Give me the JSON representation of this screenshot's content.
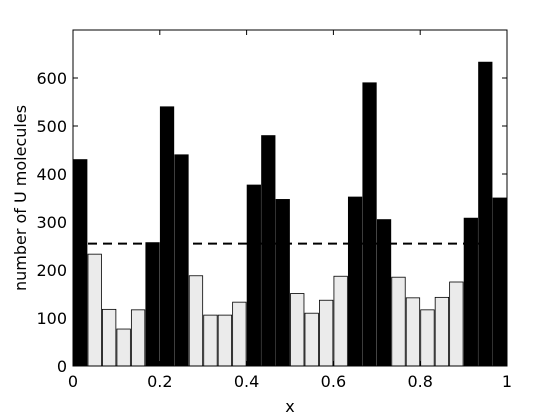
{
  "chart_data": {
    "type": "bar",
    "xlabel": "x",
    "ylabel": "number of U molecules",
    "xlim": [
      0,
      1
    ],
    "ylim": [
      0,
      700
    ],
    "x_ticks": [
      0,
      0.2,
      0.4,
      0.6,
      0.8,
      1
    ],
    "x_tick_labels": [
      "0",
      "0.2",
      "0.4",
      "0.6",
      "0.8",
      "1"
    ],
    "y_ticks": [
      0,
      100,
      200,
      300,
      400,
      500,
      600
    ],
    "y_tick_labels": [
      "0",
      "100",
      "200",
      "300",
      "400",
      "500",
      "600"
    ],
    "bin_width": 0.0333,
    "bars": [
      {
        "x": 0.0167,
        "value": 430,
        "color": "black"
      },
      {
        "x": 0.05,
        "value": 233,
        "color": "light"
      },
      {
        "x": 0.0833,
        "value": 118,
        "color": "light"
      },
      {
        "x": 0.1167,
        "value": 77,
        "color": "light"
      },
      {
        "x": 0.15,
        "value": 117,
        "color": "light"
      },
      {
        "x": 0.1833,
        "value": 257,
        "color": "black"
      },
      {
        "x": 0.2167,
        "value": 540,
        "color": "black"
      },
      {
        "x": 0.25,
        "value": 440,
        "color": "black"
      },
      {
        "x": 0.2833,
        "value": 188,
        "color": "light"
      },
      {
        "x": 0.3167,
        "value": 106,
        "color": "light"
      },
      {
        "x": 0.35,
        "value": 106,
        "color": "light"
      },
      {
        "x": 0.3833,
        "value": 133,
        "color": "light"
      },
      {
        "x": 0.4167,
        "value": 377,
        "color": "black"
      },
      {
        "x": 0.45,
        "value": 480,
        "color": "black"
      },
      {
        "x": 0.4833,
        "value": 347,
        "color": "black"
      },
      {
        "x": 0.5167,
        "value": 151,
        "color": "light"
      },
      {
        "x": 0.55,
        "value": 110,
        "color": "light"
      },
      {
        "x": 0.5833,
        "value": 137,
        "color": "light"
      },
      {
        "x": 0.6167,
        "value": 187,
        "color": "light"
      },
      {
        "x": 0.65,
        "value": 352,
        "color": "black"
      },
      {
        "x": 0.6833,
        "value": 590,
        "color": "black"
      },
      {
        "x": 0.7167,
        "value": 305,
        "color": "black"
      },
      {
        "x": 0.75,
        "value": 185,
        "color": "light"
      },
      {
        "x": 0.7833,
        "value": 142,
        "color": "light"
      },
      {
        "x": 0.8167,
        "value": 117,
        "color": "light"
      },
      {
        "x": 0.85,
        "value": 143,
        "color": "light"
      },
      {
        "x": 0.8833,
        "value": 175,
        "color": "light"
      },
      {
        "x": 0.9167,
        "value": 308,
        "color": "black"
      },
      {
        "x": 0.95,
        "value": 633,
        "color": "black"
      },
      {
        "x": 0.9833,
        "value": 350,
        "color": "black"
      }
    ],
    "reference_line": {
      "y": 255,
      "style": "dashed"
    },
    "colors": {
      "dark": "#000000",
      "light": "#ebebeb",
      "edge": "#000000"
    },
    "grid": false,
    "legend": "none"
  }
}
